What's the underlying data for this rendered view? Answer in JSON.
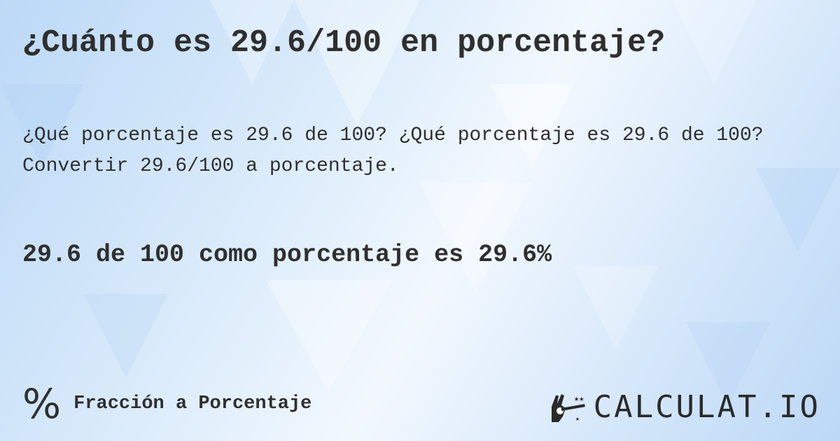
{
  "title": "¿Cuánto es 29.6/100 en porcentaje?",
  "description": "¿Qué porcentaje es 29.6 de 100? ¿Qué porcentaje es 29.6 de 100? Convertir 29.6/100 a porcentaje.",
  "answer": "29.6 de 100 como porcentaje es 29.6%",
  "category": {
    "icon": "percent-icon",
    "symbol": "%",
    "label": "Fracción a Porcentaje"
  },
  "logo": {
    "icon": "magic-hand-icon",
    "text": "CALCULAT.IO"
  },
  "colors": {
    "text": "#2f2f2f",
    "background": "#d6e8fb"
  }
}
